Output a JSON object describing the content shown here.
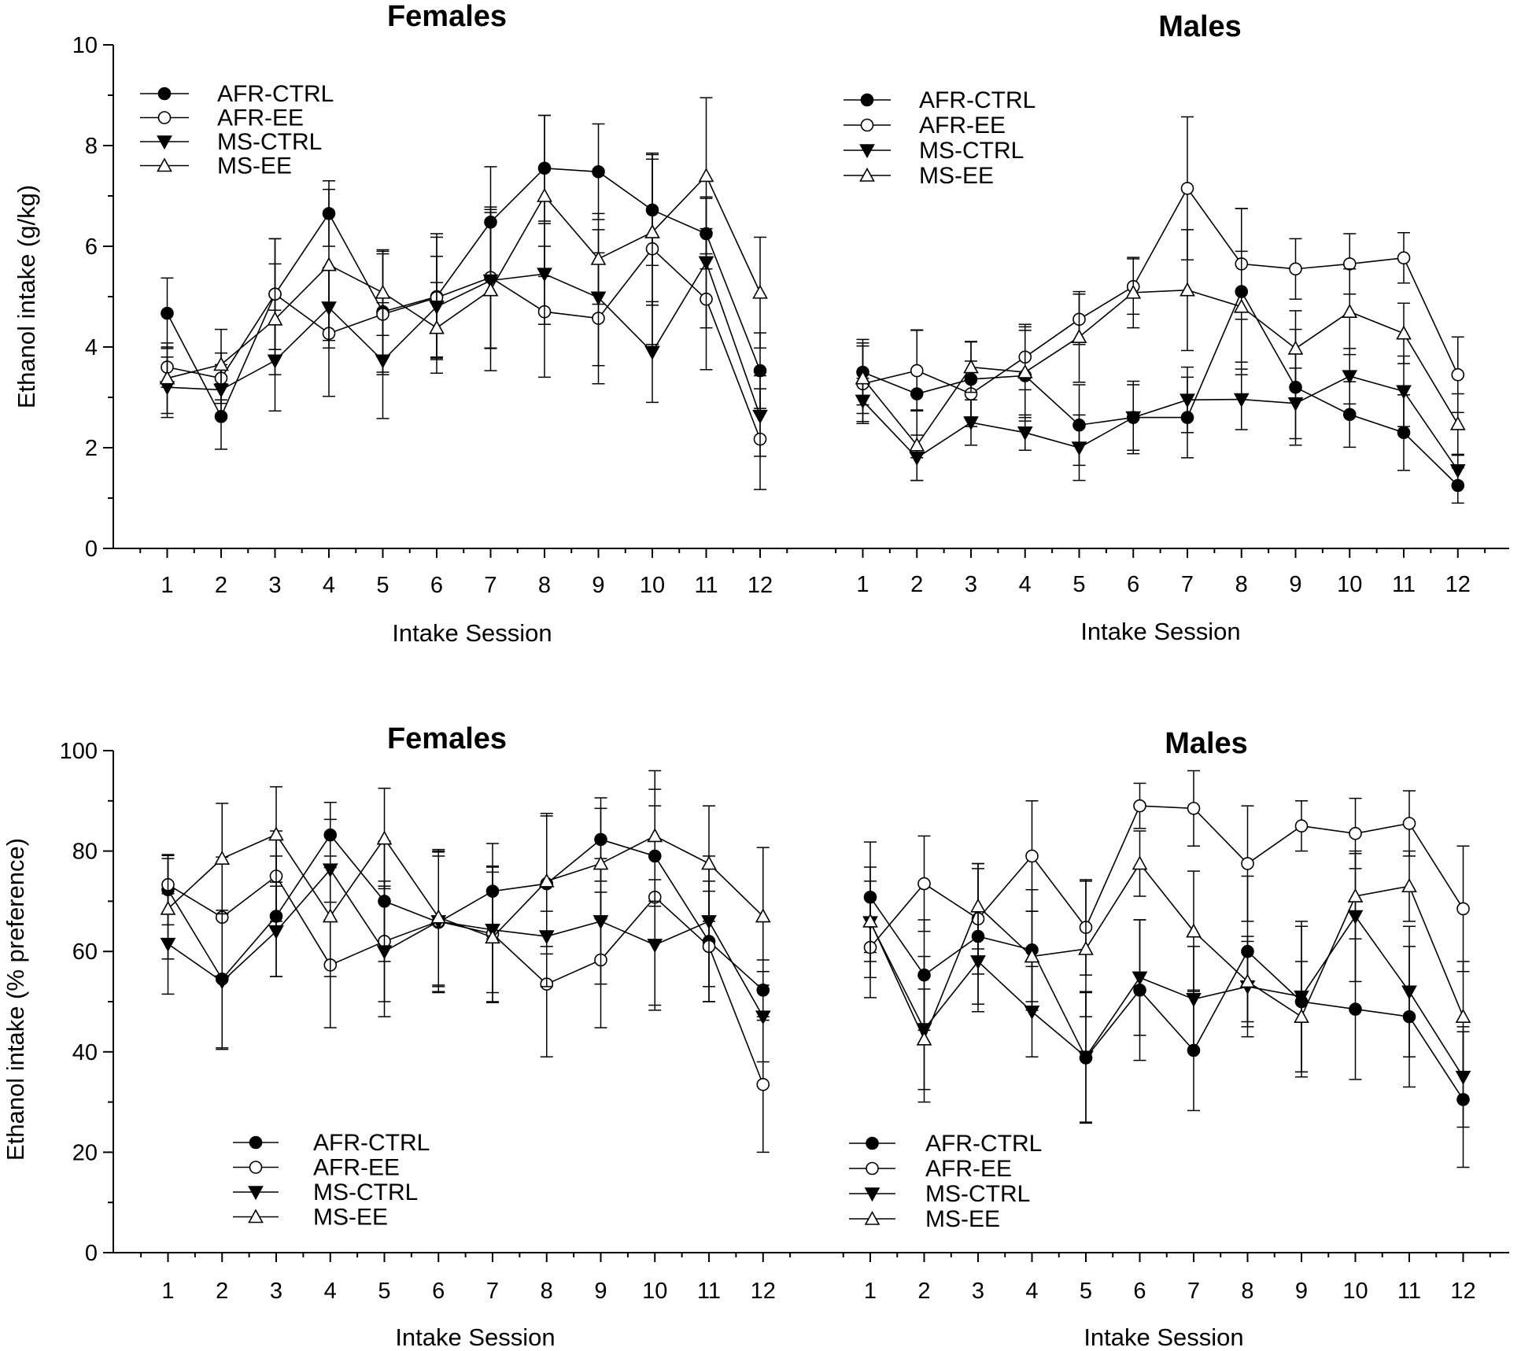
{
  "chart_data": [
    {
      "type": "line",
      "title": "Females",
      "xlabel": "Intake Session",
      "ylabel": "Ethanol intake (g/kg)",
      "ylim": [
        0,
        10
      ],
      "yticks": [
        0,
        2,
        4,
        6,
        8,
        10
      ],
      "x": [
        1,
        2,
        3,
        4,
        5,
        6,
        7,
        8,
        9,
        10,
        11,
        12
      ],
      "legend_position": "top-left",
      "series": [
        {
          "name": "AFR-CTRL",
          "marker": "filled-circle",
          "values": [
            4.67,
            2.62,
            5.05,
            6.65,
            4.7,
            5.0,
            6.48,
            7.55,
            7.48,
            6.72,
            6.25,
            3.53
          ],
          "errors": [
            0.7,
            0.65,
            1.1,
            0.65,
            1.2,
            1.25,
            1.1,
            1.05,
            0.95,
            1.1,
            0.7,
            0.75
          ]
        },
        {
          "name": "AFR-EE",
          "marker": "open-circle",
          "values": [
            3.6,
            3.38,
            5.05,
            4.27,
            4.65,
            4.98,
            5.38,
            4.7,
            4.57,
            5.95,
            4.95,
            2.17
          ],
          "errors": [
            0.4,
            0.5,
            1.1,
            1.25,
            1.2,
            1.2,
            1.4,
            1.3,
            1.3,
            1.9,
            1.4,
            1.0
          ]
        },
        {
          "name": "MS-CTRL",
          "marker": "filled-triangle-down",
          "values": [
            3.2,
            3.15,
            3.73,
            4.78,
            3.73,
            4.8,
            5.32,
            5.45,
            4.98,
            3.9,
            5.68,
            2.63
          ],
          "errors": [
            0.6,
            0.5,
            1.0,
            0.8,
            1.15,
            1.0,
            1.35,
            1.0,
            1.35,
            1.0,
            1.3,
            0.8
          ]
        },
        {
          "name": "MS-EE",
          "marker": "open-triangle-up",
          "values": [
            3.38,
            3.65,
            4.55,
            5.63,
            5.08,
            4.38,
            5.13,
            7.0,
            5.75,
            6.28,
            7.4,
            5.08
          ],
          "errors": [
            0.7,
            0.7,
            1.1,
            1.5,
            0.85,
            0.9,
            1.6,
            1.6,
            0.9,
            1.45,
            1.55,
            1.1
          ]
        }
      ]
    },
    {
      "type": "line",
      "title": "Males",
      "xlabel": "Intake Session",
      "ylabel": "",
      "ylim": [
        0,
        10
      ],
      "x": [
        1,
        2,
        3,
        4,
        5,
        6,
        7,
        8,
        9,
        10,
        11,
        12
      ],
      "legend_position": "top-left",
      "series": [
        {
          "name": "AFR-CTRL",
          "marker": "filled-circle",
          "values": [
            3.5,
            3.07,
            3.36,
            3.43,
            2.45,
            2.6,
            2.6,
            5.1,
            3.2,
            2.66,
            2.3,
            1.25
          ],
          "errors": [
            0.65,
            1.27,
            0.75,
            0.9,
            0.8,
            0.72,
            0.8,
            1.65,
            1.15,
            0.65,
            0.75,
            0.35
          ]
        },
        {
          "name": "AFR-EE",
          "marker": "open-circle",
          "values": [
            3.27,
            3.53,
            3.07,
            3.8,
            4.55,
            5.2,
            7.15,
            5.65,
            5.55,
            5.65,
            5.77,
            3.45
          ],
          "errors": [
            0.75,
            0.8,
            0.65,
            0.65,
            0.5,
            0.55,
            1.42,
            1.1,
            0.6,
            0.6,
            0.5,
            0.75
          ]
        },
        {
          "name": "MS-CTRL",
          "marker": "filled-triangle-down",
          "values": [
            2.93,
            1.8,
            2.5,
            2.3,
            2.0,
            2.6,
            2.95,
            2.96,
            2.88,
            3.42,
            3.12,
            1.55
          ],
          "errors": [
            0.45,
            0.45,
            0.45,
            0.35,
            0.65,
            0.65,
            0.65,
            0.6,
            0.7,
            0.55,
            0.7,
            0.3
          ]
        },
        {
          "name": "MS-EE",
          "marker": "open-triangle-up",
          "values": [
            3.38,
            2.05,
            3.6,
            3.5,
            4.2,
            5.08,
            5.13,
            4.8,
            3.97,
            4.7,
            4.27,
            2.47
          ],
          "errors": [
            0.7,
            0.7,
            0.5,
            0.9,
            0.9,
            0.7,
            1.2,
            1.1,
            0.75,
            0.85,
            0.6,
            0.6
          ]
        }
      ]
    },
    {
      "type": "line",
      "title": "Females",
      "xlabel": "Intake Session",
      "ylabel": "Ethanol intake (% preference)",
      "ylim": [
        0,
        100
      ],
      "yticks": [
        0,
        20,
        40,
        60,
        80,
        100
      ],
      "x": [
        1,
        2,
        3,
        4,
        5,
        6,
        7,
        8,
        9,
        10,
        11,
        12
      ],
      "legend_position": "bottom-left",
      "series": [
        {
          "name": "AFR-CTRL",
          "marker": "filled-circle",
          "values": [
            72.3,
            54.5,
            67.0,
            83.2,
            70.0,
            65.8,
            72.0,
            73.5,
            82.3,
            79.0,
            62.0,
            52.3
          ],
          "errors": [
            7.0,
            13.7,
            12.0,
            6.5,
            12.0,
            14.0,
            9.5,
            14.0,
            8.3,
            10.0,
            12.0,
            6.0
          ]
        },
        {
          "name": "AFR-EE",
          "marker": "open-circle",
          "values": [
            73.3,
            66.8,
            75.0,
            57.3,
            62.0,
            66.0,
            63.5,
            53.5,
            58.3,
            70.8,
            61.0,
            33.5
          ],
          "errors": [
            5.8,
            12.0,
            9.0,
            12.5,
            12.0,
            14.0,
            13.5,
            14.5,
            13.5,
            21.5,
            11.0,
            13.5
          ]
        },
        {
          "name": "MS-CTRL",
          "marker": "filled-triangle-down",
          "values": [
            61.5,
            54.0,
            64.0,
            76.3,
            60.0,
            66.0,
            64.3,
            63.0,
            66.0,
            61.3,
            66.0,
            47.0
          ],
          "errors": [
            10.0,
            13.5,
            9.0,
            10.0,
            13.0,
            13.0,
            12.5,
            10.0,
            12.5,
            13.0,
            13.0,
            9.0
          ]
        },
        {
          "name": "MS-EE",
          "marker": "open-triangle-up",
          "values": [
            68.5,
            78.5,
            83.3,
            67.0,
            82.5,
            66.8,
            62.8,
            74.0,
            77.5,
            83.0,
            77.5,
            67.0
          ],
          "errors": [
            10.0,
            11.0,
            9.5,
            12.0,
            10.0,
            13.5,
            13.0,
            13.0,
            11.0,
            13.0,
            11.5,
            13.7
          ]
        }
      ]
    },
    {
      "type": "line",
      "title": "Males",
      "xlabel": "Intake Session",
      "ylabel": "",
      "ylim": [
        0,
        100
      ],
      "x": [
        1,
        2,
        3,
        4,
        5,
        6,
        7,
        8,
        9,
        10,
        11,
        12
      ],
      "legend_position": "bottom-left",
      "series": [
        {
          "name": "AFR-CTRL",
          "marker": "filled-circle",
          "values": [
            70.8,
            55.3,
            63.0,
            60.3,
            38.8,
            52.3,
            40.3,
            60.0,
            50.0,
            48.5,
            47.0,
            30.5
          ],
          "errors": [
            11.0,
            11.0,
            13.5,
            12.0,
            13.0,
            14.0,
            12.0,
            15.0,
            15.0,
            14.0,
            14.0,
            13.5
          ]
        },
        {
          "name": "AFR-EE",
          "marker": "open-circle",
          "values": [
            60.8,
            73.5,
            66.5,
            79.0,
            64.8,
            89.0,
            88.5,
            77.5,
            85.0,
            83.5,
            85.5,
            68.5
          ],
          "errors": [
            10.0,
            9.5,
            11.0,
            11.0,
            9.5,
            4.5,
            7.5,
            11.5,
            5.0,
            7.0,
            6.5,
            12.5
          ]
        },
        {
          "name": "MS-CTRL",
          "marker": "filled-triangle-down",
          "values": [
            65.8,
            44.5,
            58.0,
            48.0,
            39.0,
            54.8,
            50.5,
            53.0,
            51.0,
            67.0,
            52.0,
            35.0
          ],
          "errors": [
            11.0,
            14.5,
            10.0,
            9.0,
            13.0,
            11.5,
            10.5,
            10.0,
            15.0,
            13.0,
            13.0,
            10.0
          ]
        },
        {
          "name": "MS-EE",
          "marker": "open-triangle-up",
          "values": [
            66.0,
            42.5,
            69.0,
            59.0,
            60.5,
            77.5,
            64.0,
            54.0,
            47.0,
            71.0,
            73.0,
            47.0
          ],
          "errors": [
            8.0,
            10.0,
            8.5,
            9.0,
            13.5,
            6.5,
            12.0,
            8.0,
            11.0,
            8.5,
            7.0,
            11.0
          ]
        }
      ]
    }
  ]
}
